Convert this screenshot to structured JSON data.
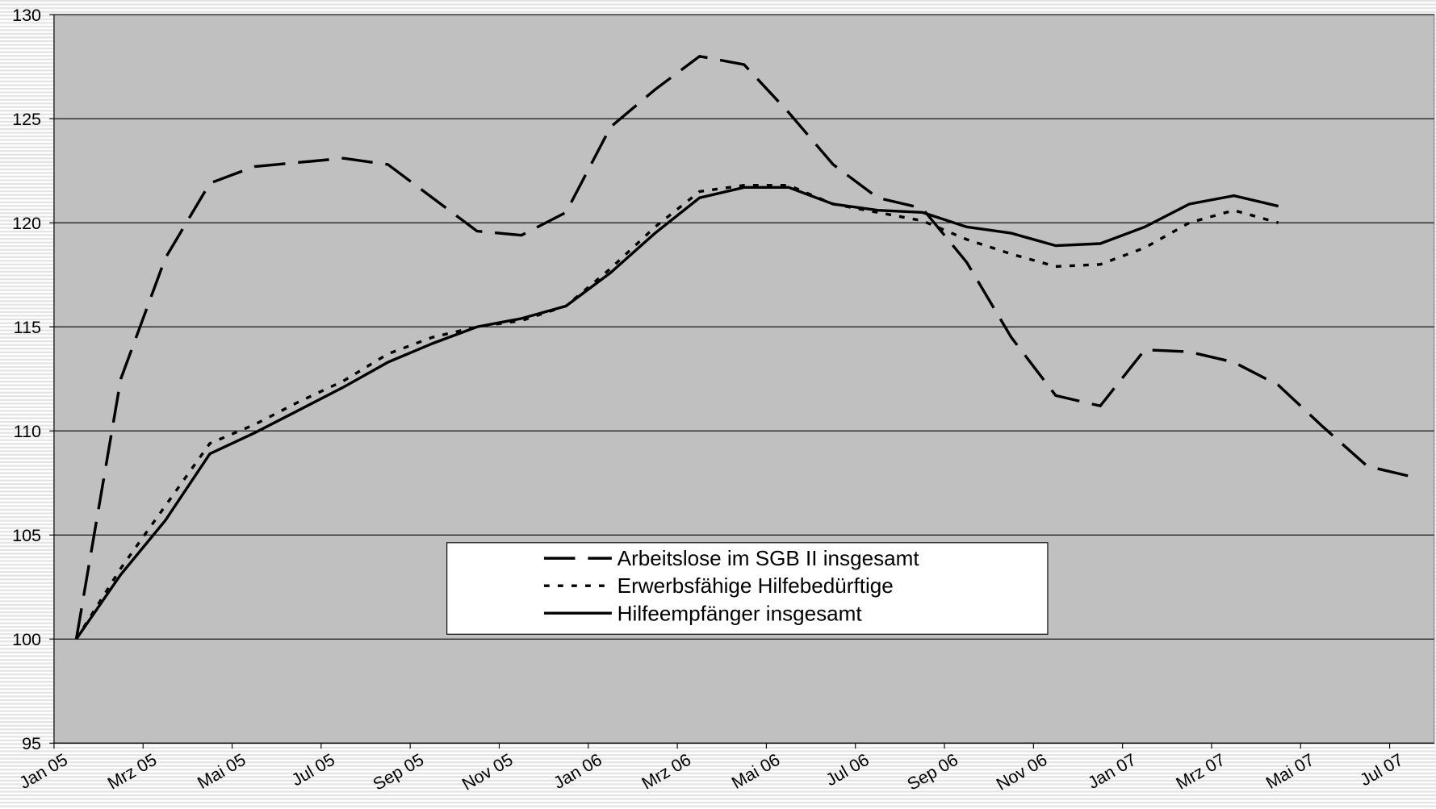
{
  "chart_data": {
    "type": "line",
    "categories": [
      "Jan 05",
      null,
      "Mrz 05",
      null,
      "Mai 05",
      null,
      "Jul 05",
      null,
      "Sep 05",
      null,
      "Nov 05",
      null,
      "Jan 06",
      null,
      "Mrz 06",
      null,
      "Mai 06",
      null,
      "Jul 06",
      null,
      "Sep 06",
      null,
      "Nov 06",
      null,
      "Jan 07",
      null,
      "Mrz 07",
      null,
      "Mai 07",
      null,
      "Jul 07"
    ],
    "series": [
      {
        "name": "Arbeitslose im SGB II insgesamt",
        "color": "#000000",
        "line_style": "dashed",
        "values": [
          100,
          112.5,
          118.3,
          121.9,
          122.7,
          122.9,
          123.1,
          122.8,
          121.2,
          119.6,
          119.4,
          120.5,
          124.6,
          126.4,
          128.0,
          127.6,
          125.3,
          122.8,
          121.2,
          120.7,
          118.1,
          114.5,
          111.7,
          111.2,
          113.9,
          113.8,
          113.3,
          112.2,
          110.2,
          108.3,
          107.8
        ]
      },
      {
        "name": "Erwerbsfähige Hilfebedürftige",
        "color": "#000000",
        "line_style": "dotted",
        "values": [
          100,
          103.4,
          106.4,
          109.4,
          110.3,
          111.4,
          112.4,
          113.7,
          114.5,
          115.0,
          115.3,
          116.0,
          117.8,
          119.8,
          121.5,
          121.8,
          121.8,
          120.9,
          120.5,
          120.1,
          119.2,
          118.5,
          117.9,
          118.0,
          118.8,
          120.0,
          120.6,
          120.0,
          null,
          null,
          null
        ]
      },
      {
        "name": "Hilfeempfänger insgesamt",
        "color": "#000000",
        "line_style": "solid",
        "values": [
          100,
          103.1,
          105.7,
          108.9,
          109.9,
          111.0,
          112.1,
          113.3,
          114.2,
          115.0,
          115.4,
          116.0,
          117.6,
          119.5,
          121.2,
          121.7,
          121.7,
          120.9,
          120.6,
          120.5,
          119.8,
          119.5,
          118.9,
          119.0,
          119.8,
          120.9,
          121.3,
          120.8,
          null,
          null,
          null
        ]
      }
    ],
    "ylim": [
      95,
      130
    ],
    "yticks": [
      95,
      100,
      105,
      110,
      115,
      120,
      125,
      130
    ],
    "grid": true,
    "plot_background": "#c0c0c0"
  }
}
